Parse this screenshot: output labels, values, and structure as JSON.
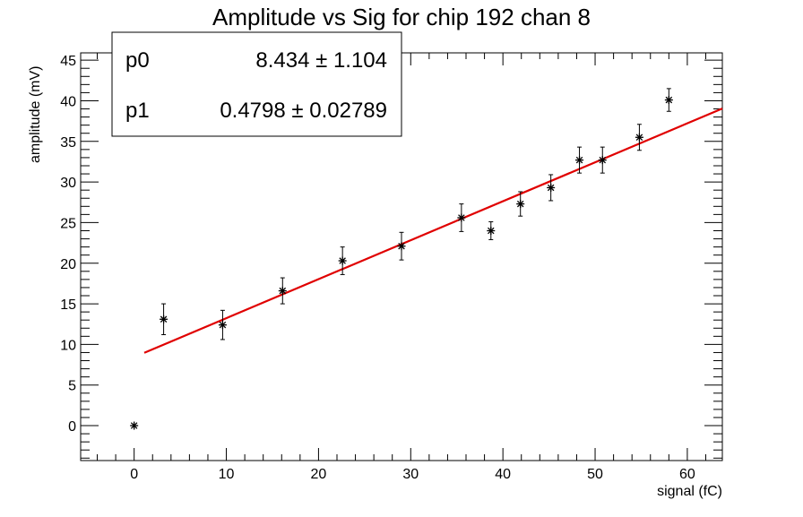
{
  "chart_data": {
    "type": "scatter",
    "title": "Amplitude vs Sig for chip 192 chan 8",
    "xlabel": "signal (fC)",
    "ylabel": "amplitude (mV)",
    "xlim": [
      -5.8,
      63.8
    ],
    "ylim": [
      -4.3,
      45.9
    ],
    "x_ticks": [
      0,
      10,
      20,
      30,
      40,
      50,
      60
    ],
    "y_ticks": [
      0,
      5,
      10,
      15,
      20,
      25,
      30,
      35,
      40,
      45
    ],
    "grid": false,
    "legend_position": "top-left",
    "points": [
      {
        "x": 0.0,
        "y": 0.0,
        "err": 0.0
      },
      {
        "x": 3.2,
        "y": 13.1,
        "err": 1.9
      },
      {
        "x": 9.6,
        "y": 12.4,
        "err": 1.8
      },
      {
        "x": 16.1,
        "y": 16.6,
        "err": 1.6
      },
      {
        "x": 22.6,
        "y": 20.3,
        "err": 1.7
      },
      {
        "x": 29.0,
        "y": 22.1,
        "err": 1.7
      },
      {
        "x": 35.5,
        "y": 25.6,
        "err": 1.7
      },
      {
        "x": 38.7,
        "y": 24.0,
        "err": 1.1
      },
      {
        "x": 41.9,
        "y": 27.3,
        "err": 1.5
      },
      {
        "x": 45.2,
        "y": 29.3,
        "err": 1.6
      },
      {
        "x": 48.3,
        "y": 32.7,
        "err": 1.6
      },
      {
        "x": 50.8,
        "y": 32.7,
        "err": 1.6
      },
      {
        "x": 54.8,
        "y": 35.5,
        "err": 1.6
      },
      {
        "x": 58.0,
        "y": 40.1,
        "err": 1.4
      }
    ],
    "fit": {
      "p0": 8.434,
      "p1": 0.4798,
      "x_range": [
        1.1,
        63.8
      ],
      "color": "#e00000"
    },
    "stats_box": {
      "rows": [
        {
          "name": "p0",
          "value": "8.434",
          "error": "1.104"
        },
        {
          "name": "p1",
          "value": "0.4798",
          "error": "0.02789"
        }
      ]
    }
  }
}
